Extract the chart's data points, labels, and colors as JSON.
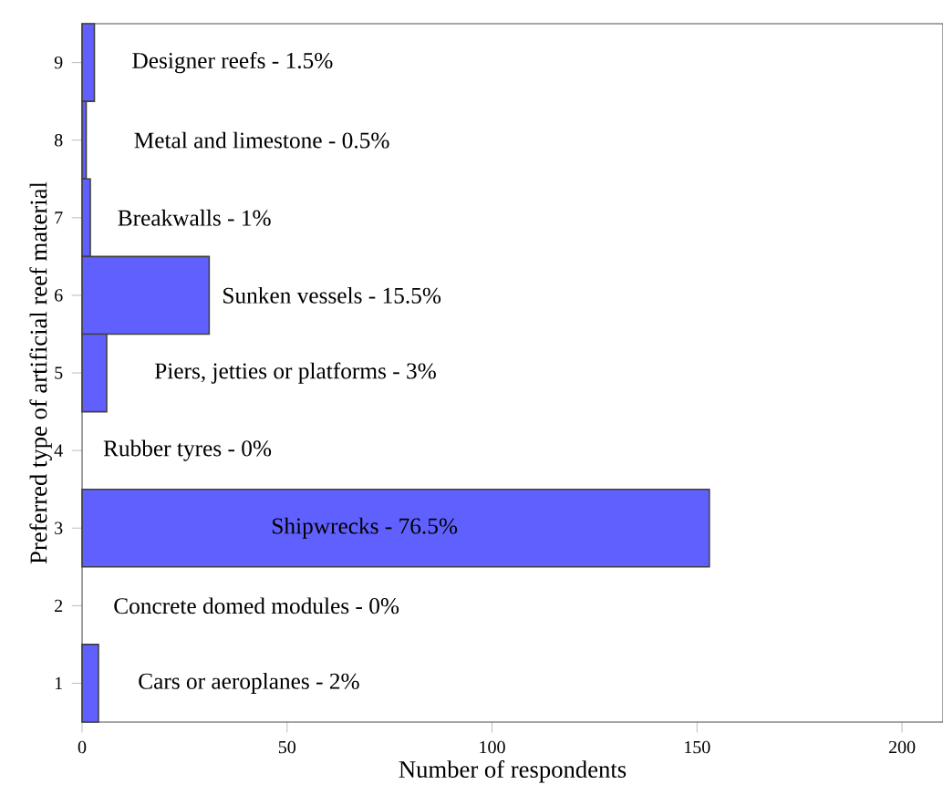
{
  "chart_data": {
    "type": "bar",
    "orientation": "horizontal",
    "xlabel": "Number of respondents",
    "ylabel": "Preferred type of artificial reef material",
    "categories": [
      "9",
      "8",
      "7",
      "6",
      "5",
      "4",
      "3",
      "2",
      "1"
    ],
    "values": [
      3,
      1,
      2,
      31,
      6,
      0,
      153,
      0,
      4
    ],
    "annotations": [
      "Designer reefs - 1.5%",
      "Metal and limestone - 0.5%",
      "Breakwalls - 1%",
      "Sunken vessels - 15.5%",
      "Piers, jetties or platforms - 3%",
      "Rubber tyres - 0%",
      "Shipwrecks - 76.5%",
      "Concrete domed modules - 0%",
      "Cars or aeroplanes - 2%"
    ],
    "color": "#6060ff",
    "xlim": [
      0,
      210
    ],
    "xticks": [
      0,
      50,
      100,
      150,
      200
    ],
    "grid": false
  }
}
